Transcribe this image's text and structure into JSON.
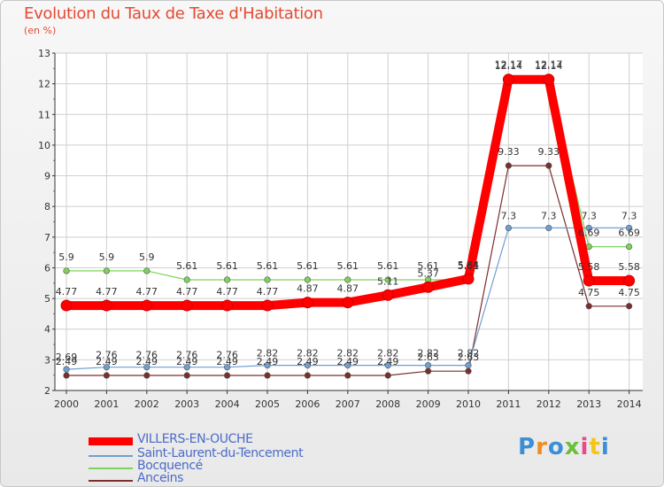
{
  "title": "Evolution du Taux de Taxe d'Habitation",
  "subtitle": "(en %)",
  "logo": {
    "text": "Proxiti",
    "colors": [
      "#3b8fd6",
      "#f28c1e",
      "#3b8fd6",
      "#6bbf3a",
      "#e64b8a",
      "#f5c518",
      "#3b8fd6"
    ]
  },
  "colors": {
    "title": "#e34a33",
    "legend_text": "#4a6ac8",
    "axis": "#333333",
    "grid": "#cfcfcf",
    "tick_red": "#e34a33"
  },
  "chart_data": {
    "type": "line",
    "x": [
      "2000",
      "2001",
      "2002",
      "2003",
      "2004",
      "2005",
      "2006",
      "2007",
      "2008",
      "2009",
      "2010",
      "2011",
      "2012",
      "2013",
      "2014"
    ],
    "y_ticks": [
      "2",
      "3",
      "4",
      "5",
      "6",
      "7",
      "8",
      "9",
      "10",
      "11",
      "12",
      "13"
    ],
    "ylim": [
      2,
      13
    ],
    "grid": true,
    "legend_position": "bottom-left",
    "series": [
      {
        "name": "VILLERS-EN-OUCHE",
        "color": "#ff0000",
        "values": [
          4.77,
          4.77,
          4.77,
          4.77,
          4.77,
          4.77,
          4.87,
          4.87,
          5.11,
          5.37,
          5.64,
          12.14,
          12.14,
          5.58,
          5.58
        ],
        "labels": [
          "4.77",
          "4.77",
          "4.77",
          "4.77",
          "4.77",
          "4.77",
          "4.87",
          "4.87",
          "5.11",
          "5.37",
          "5.64",
          "12.14",
          "12.14",
          "5.58",
          "5.58"
        ]
      },
      {
        "name": "Saint-Laurent-du-Tencement",
        "color": "#6f9fd0",
        "values": [
          2.69,
          2.76,
          2.76,
          2.76,
          2.76,
          2.82,
          2.82,
          2.82,
          2.82,
          2.82,
          2.82,
          7.3,
          7.3,
          7.3,
          7.3
        ],
        "labels": [
          "2.69",
          "2.76",
          "2.76",
          "2.76",
          "2.76",
          "2.82",
          "2.82",
          "2.82",
          "2.82",
          "2.82",
          "2.82",
          "7.3",
          "7.3",
          "7.3",
          "7.3"
        ]
      },
      {
        "name": "Bocquencé",
        "color": "#7cd35b",
        "values": [
          5.9,
          5.9,
          5.9,
          5.61,
          5.61,
          5.61,
          5.61,
          5.61,
          5.61,
          5.61,
          5.61,
          12.17,
          12.17,
          6.69,
          6.69
        ],
        "labels": [
          "5.9",
          "5.9",
          "5.9",
          "5.61",
          "5.61",
          "5.61",
          "5.61",
          "5.61",
          "5.61",
          "5.61",
          "5.61",
          "12.17",
          "12.17",
          "6.69",
          "6.69"
        ]
      },
      {
        "name": "Anceins",
        "color": "#7a2e2e",
        "values": [
          2.49,
          2.49,
          2.49,
          2.49,
          2.49,
          2.49,
          2.49,
          2.49,
          2.49,
          2.63,
          2.63,
          9.33,
          9.33,
          4.75,
          4.75
        ],
        "labels": [
          "2.49",
          "2.49",
          "2.49",
          "2.49",
          "2.49",
          "2.49",
          "2.49",
          "2.49",
          "2.49",
          "2.63",
          "2.63",
          "9.33",
          "9.33",
          "4.75",
          "4.75"
        ]
      }
    ]
  }
}
